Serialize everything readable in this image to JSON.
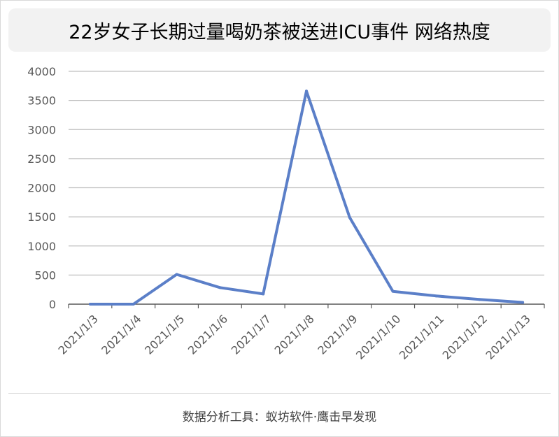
{
  "title": "22岁女子长期过量喝奶茶被送进ICU事件 网络热度",
  "footer": "数据分析工具：蚁坊软件·鹰击早发现",
  "colors": {
    "line": "#5b7fc8",
    "grid": "#bfbfbf",
    "axis": "#595959",
    "title_bg": "#f2f2f2"
  },
  "chart_data": {
    "type": "line",
    "title": "22岁女子长期过量喝奶茶被送进ICU事件 网络热度",
    "xlabel": "",
    "ylabel": "",
    "categories": [
      "2021/1/3",
      "2021/1/4",
      "2021/1/5",
      "2021/1/6",
      "2021/1/7",
      "2021/1/8",
      "2021/1/9",
      "2021/1/10",
      "2021/1/11",
      "2021/1/12",
      "2021/1/13"
    ],
    "values": [
      0,
      0,
      510,
      285,
      175,
      3660,
      1490,
      220,
      140,
      80,
      30
    ],
    "ylim": [
      0,
      4000
    ],
    "yticks": [
      0,
      500,
      1000,
      1500,
      2000,
      2500,
      3000,
      3500,
      4000
    ],
    "grid": true,
    "legend": "none"
  }
}
